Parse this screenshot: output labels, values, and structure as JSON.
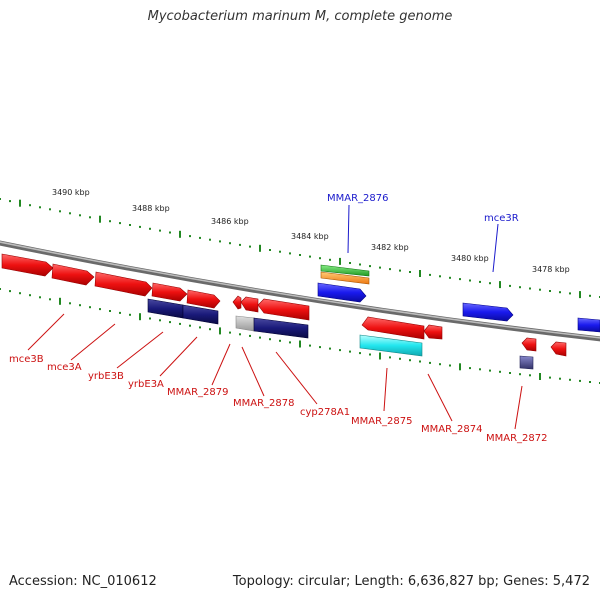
{
  "title": "Mycobacterium marinum M, complete genome",
  "footer": {
    "accession": "Accession: NC_010612",
    "summary": "Topology: circular; Length: 6,636,827 bp; Genes: 5,472"
  },
  "scale_ticks": [
    "3490 kbp",
    "3488 kbp",
    "3486 kbp",
    "3484 kbp",
    "3482 kbp",
    "3480 kbp",
    "3478 kbp"
  ],
  "gene_labels": {
    "forward": [
      "MMAR_2876",
      "mce3R"
    ],
    "reverse": [
      "mce3B",
      "mce3A",
      "yrbE3B",
      "yrbE3A",
      "MMAR_2879",
      "MMAR_2878",
      "cyp278A1",
      "MMAR_2875",
      "MMAR_2874",
      "MMAR_2872"
    ]
  },
  "colors": {
    "forward_label": "#1a1acc",
    "reverse_label": "#cc1111",
    "reverse_gene": "#ee1111",
    "forward_gene": "#1a1aee",
    "navy_gene": "#1a1a7a",
    "cyan_feature": "#22e6ee",
    "green_feature": "#33bb33",
    "orange_feature": "#ff9922",
    "grey_feature": "#bbbbbb",
    "backbone": "#8a8a8a",
    "tick_dots": "#228822"
  }
}
